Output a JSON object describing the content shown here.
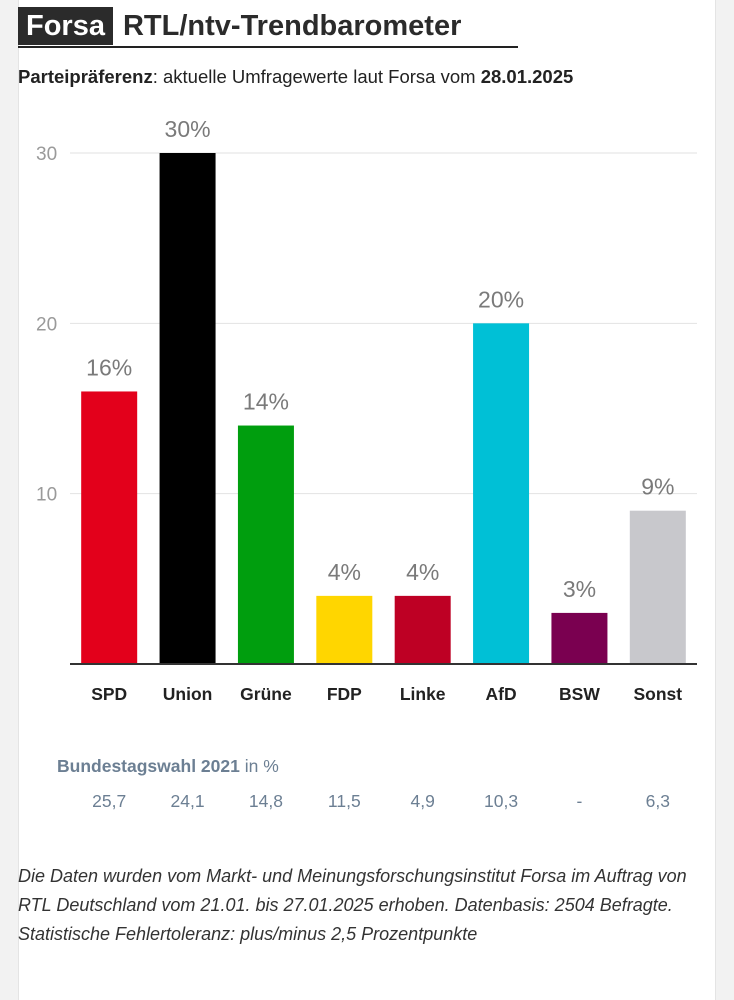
{
  "header": {
    "brand": "Forsa",
    "title": "RTL/ntv-Trendbarometer",
    "subtitle_bold": "Parteipräferenz",
    "subtitle_text": ": aktuelle Umfragewerte laut Forsa vom ",
    "subtitle_date": "28.01.2025"
  },
  "chart_data": {
    "type": "bar",
    "categories": [
      "SPD",
      "Union",
      "Grüne",
      "FDP",
      "Linke",
      "AfD",
      "BSW",
      "Sonst"
    ],
    "values": [
      16,
      30,
      14,
      4,
      4,
      20,
      3,
      9
    ],
    "value_labels": [
      "16%",
      "30%",
      "14%",
      "4%",
      "4%",
      "20%",
      "3%",
      "9%"
    ],
    "colors": [
      "#e3001b",
      "#000000",
      "#009e0e",
      "#ffd600",
      "#be0024",
      "#00c0d6",
      "#7a0050",
      "#c8c8cc"
    ],
    "ylim": [
      0,
      30
    ],
    "yticks": [
      10,
      20,
      30
    ],
    "grid": true
  },
  "previous_election": {
    "label_bold": "Bundestagswahl 2021",
    "label_unit": " in %",
    "values": [
      "25,7",
      "24,1",
      "14,8",
      "11,5",
      "4,9",
      "10,3",
      "-",
      "6,3"
    ]
  },
  "footnote": "Die Daten wurden vom Markt- und Meinungsforschungsinstitut Forsa im Auftrag von RTL Deutschland vom 21.01. bis 27.01.2025 erhoben. Datenbasis: 2504 Befragte. Statistische Fehlertoleranz: plus/minus 2,5 Prozentpunkte"
}
